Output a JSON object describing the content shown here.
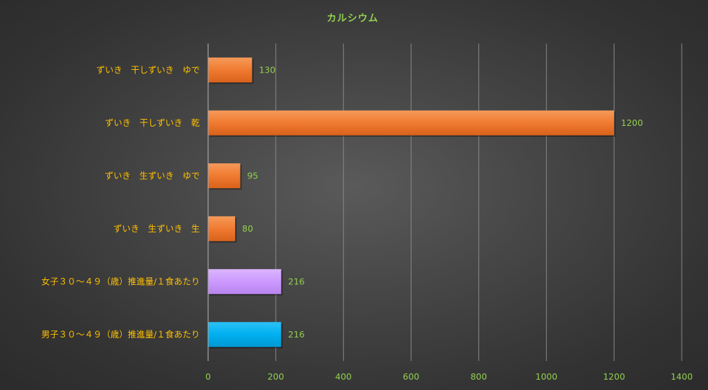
{
  "chart_data": {
    "type": "bar",
    "orientation": "horizontal",
    "title": "カルシウム",
    "xlabel": "",
    "ylabel": "",
    "categories": [
      "ずいき　干しずいき　ゆで",
      "ずいき　干しずいき　乾",
      "ずいき　生ずいき　ゆで",
      "ずいき　生ずいき　生",
      "女子３０～４９（歳）推進量/１食あたり",
      "男子３０～４９（歳）推進量/１食あたり"
    ],
    "values": [
      130,
      1200,
      95,
      80,
      216,
      216
    ],
    "data_labels": [
      "130",
      "1200",
      "95",
      "80",
      "216",
      "216"
    ],
    "bar_colors": [
      "#f07a30",
      "#f07a30",
      "#f07a30",
      "#f07a30",
      "#cc99ff",
      "#00b0f0"
    ],
    "xlim": [
      0,
      1400
    ],
    "xticks": [
      0,
      200,
      400,
      600,
      800,
      1000,
      1200,
      1400
    ],
    "xtick_labels": [
      "0",
      "200",
      "400",
      "600",
      "800",
      "1000",
      "1200",
      "1400"
    ],
    "grid": "vertical",
    "legend": "none",
    "colors": {
      "title": "#92d050",
      "category_label": "#ffc000",
      "tick_label": "#92d050",
      "value_label": "#92d050",
      "gridline": "#8a8a8a",
      "axis_line": "#a6a6a6"
    }
  }
}
